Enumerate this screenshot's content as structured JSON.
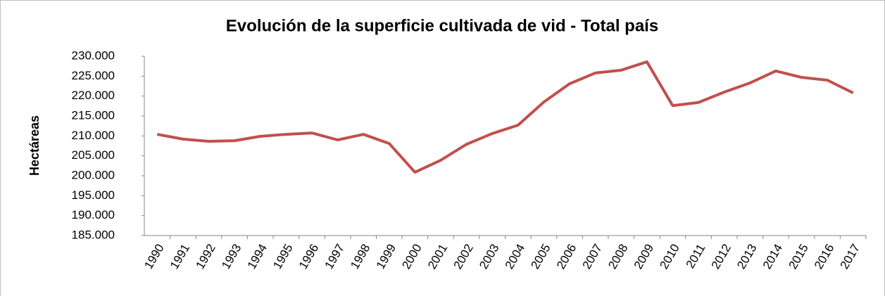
{
  "chart_data": {
    "type": "line",
    "title": "Evolución de la superficie cultivada de vid - Total país",
    "y_label": "Hectáreas",
    "categories": [
      "1990",
      "1991",
      "1992",
      "1993",
      "1994",
      "1995",
      "1996",
      "1997",
      "1998",
      "1999",
      "2000",
      "2001",
      "2002",
      "2003",
      "2004",
      "2005",
      "2006",
      "2007",
      "2008",
      "2009",
      "2010",
      "2011",
      "2012",
      "2013",
      "2014",
      "2015",
      "2016",
      "2017"
    ],
    "series": [
      {
        "name": "Hectáreas",
        "color": "#c0504d",
        "values": [
          210400,
          209200,
          208650,
          208800,
          209900,
          210400,
          210750,
          209000,
          210400,
          208100,
          200900,
          203900,
          207900,
          210600,
          212700,
          218500,
          223100,
          225800,
          226500,
          228600,
          217600,
          218400,
          221000,
          223300,
          226300,
          224700,
          224000,
          220800
        ]
      }
    ],
    "ylim": [
      185000,
      230000
    ],
    "yticks": [
      {
        "value": 185000,
        "label": "185.000"
      },
      {
        "value": 190000,
        "label": "190.000"
      },
      {
        "value": 195000,
        "label": "195.000"
      },
      {
        "value": 200000,
        "label": "200.000"
      },
      {
        "value": 205000,
        "label": "205.000"
      },
      {
        "value": 210000,
        "label": "210.000"
      },
      {
        "value": 215000,
        "label": "215.000"
      },
      {
        "value": 220000,
        "label": "220.000"
      },
      {
        "value": 225000,
        "label": "225.000"
      },
      {
        "value": 230000,
        "label": "230.000"
      }
    ],
    "grid": false
  }
}
